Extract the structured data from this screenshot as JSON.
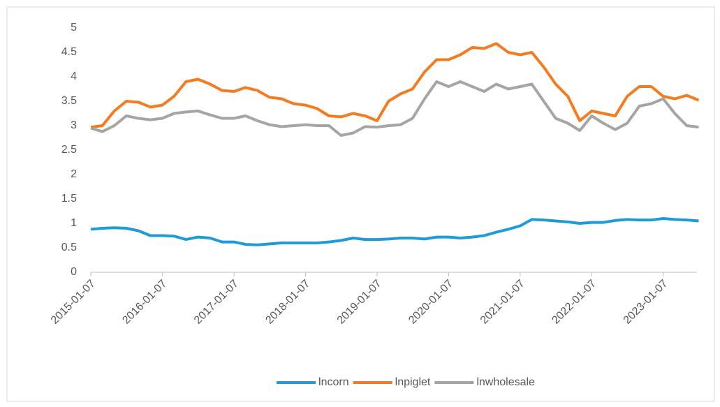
{
  "chart_data": {
    "type": "line",
    "x": [
      "2015-01-07",
      "2015-03-07",
      "2015-05-07",
      "2015-07-07",
      "2015-09-07",
      "2015-11-07",
      "2016-01-07",
      "2016-03-07",
      "2016-05-07",
      "2016-07-07",
      "2016-09-07",
      "2016-11-07",
      "2017-01-07",
      "2017-03-07",
      "2017-05-07",
      "2017-07-07",
      "2017-09-07",
      "2017-11-07",
      "2018-01-07",
      "2018-03-07",
      "2018-05-07",
      "2018-07-07",
      "2018-09-07",
      "2018-11-07",
      "2019-01-07",
      "2019-03-07",
      "2019-05-07",
      "2019-07-07",
      "2019-09-07",
      "2019-11-07",
      "2020-01-07",
      "2020-03-07",
      "2020-05-07",
      "2020-07-07",
      "2020-09-07",
      "2020-11-07",
      "2021-01-07",
      "2021-03-07",
      "2021-05-07",
      "2021-07-07",
      "2021-09-07",
      "2021-11-07",
      "2022-01-07",
      "2022-03-07",
      "2022-05-07",
      "2022-07-07",
      "2022-09-07",
      "2022-11-07",
      "2023-01-07",
      "2023-03-07",
      "2023-05-07",
      "2023-07-07"
    ],
    "series": [
      {
        "name": "lncorn",
        "color": "#1f9bd7",
        "values": [
          0.88,
          0.9,
          0.91,
          0.9,
          0.85,
          0.75,
          0.75,
          0.74,
          0.67,
          0.72,
          0.7,
          0.62,
          0.62,
          0.57,
          0.56,
          0.58,
          0.6,
          0.6,
          0.6,
          0.6,
          0.62,
          0.65,
          0.7,
          0.67,
          0.67,
          0.68,
          0.7,
          0.7,
          0.68,
          0.72,
          0.72,
          0.7,
          0.72,
          0.75,
          0.82,
          0.88,
          0.95,
          1.08,
          1.07,
          1.05,
          1.03,
          1.0,
          1.02,
          1.02,
          1.06,
          1.08,
          1.07,
          1.07,
          1.1,
          1.08,
          1.07,
          1.05
        ]
      },
      {
        "name": "lnpiglet",
        "color": "#f47b20",
        "values": [
          2.97,
          3.0,
          3.3,
          3.5,
          3.48,
          3.38,
          3.42,
          3.6,
          3.9,
          3.95,
          3.85,
          3.72,
          3.7,
          3.78,
          3.72,
          3.58,
          3.55,
          3.45,
          3.42,
          3.35,
          3.2,
          3.18,
          3.25,
          3.2,
          3.1,
          3.5,
          3.65,
          3.75,
          4.1,
          4.35,
          4.35,
          4.45,
          4.6,
          4.58,
          4.68,
          4.5,
          4.45,
          4.5,
          4.2,
          3.85,
          3.6,
          3.1,
          3.3,
          3.25,
          3.2,
          3.6,
          3.8,
          3.8,
          3.6,
          3.55,
          3.62,
          3.52
        ]
      },
      {
        "name": "lnwholesale",
        "color": "#a5a5a5",
        "values": [
          2.95,
          2.88,
          3.0,
          3.2,
          3.15,
          3.12,
          3.15,
          3.25,
          3.28,
          3.3,
          3.22,
          3.15,
          3.15,
          3.2,
          3.1,
          3.02,
          2.98,
          3.0,
          3.02,
          3.0,
          3.0,
          2.8,
          2.85,
          2.98,
          2.97,
          3.0,
          3.02,
          3.15,
          3.55,
          3.9,
          3.8,
          3.9,
          3.8,
          3.7,
          3.85,
          3.75,
          3.8,
          3.85,
          3.5,
          3.15,
          3.05,
          2.9,
          3.2,
          3.05,
          2.92,
          3.05,
          3.4,
          3.45,
          3.55,
          3.25,
          3.0,
          2.97
        ]
      }
    ],
    "xlim": [
      "2015-01-07",
      "2023-06-28"
    ],
    "xticks": [
      "2015-01-07",
      "2016-01-07",
      "2017-01-07",
      "2018-01-07",
      "2019-01-07",
      "2020-01-07",
      "2021-01-07",
      "2022-01-07",
      "2023-01-07"
    ],
    "ylim": [
      0,
      5
    ],
    "yticks": [
      0,
      0.5,
      1,
      1.5,
      2,
      2.5,
      3,
      3.5,
      4,
      4.5,
      5
    ],
    "grid": false,
    "legend": "bottom"
  }
}
